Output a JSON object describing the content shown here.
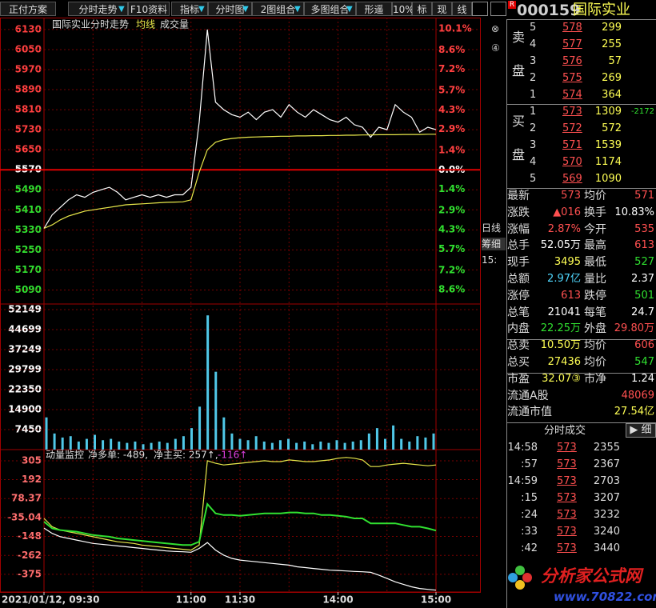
{
  "toolbar": {
    "items": [
      "正付方案",
      "分时走势",
      "F10资料",
      "指标",
      "分时图",
      "2图组合",
      "多图组合",
      "形遥",
      "10%",
      "标",
      "现",
      "线"
    ]
  },
  "chart_data": [
    {
      "type": "line",
      "title": "国际实业分时走势",
      "series": [
        {
          "color": "#ffffff",
          "values": [
            5336,
            5390,
            5420,
            5450,
            5470,
            5460,
            5480,
            5490,
            5500,
            5480,
            5450,
            5460,
            5470,
            5460,
            5470,
            5460,
            5470,
            5470,
            5500,
            5760,
            6130,
            5840,
            5810,
            5790,
            5780,
            5800,
            5770,
            5800,
            5810,
            5780,
            5830,
            5800,
            5780,
            5810,
            5790,
            5770,
            5760,
            5780,
            5750,
            5740,
            5700,
            5740,
            5730,
            5830,
            5800,
            5780,
            5720,
            5740,
            5730
          ]
        },
        {
          "name": "均线",
          "color": "#e8e84a",
          "values": [
            5336,
            5350,
            5370,
            5385,
            5395,
            5405,
            5410,
            5415,
            5420,
            5425,
            5430,
            5432,
            5434,
            5436,
            5438,
            5440,
            5441,
            5442,
            5450,
            5560,
            5650,
            5680,
            5690,
            5695,
            5698,
            5700,
            5701,
            5702,
            5703,
            5704,
            5704,
            5705,
            5705,
            5706,
            5706,
            5707,
            5707,
            5708,
            5708,
            5709,
            5709,
            5710,
            5710,
            5710,
            5711,
            5711,
            5711,
            5712,
            5712
          ]
        }
      ],
      "ylim": [
        5034,
        6168
      ],
      "yticks": [
        6130,
        6050,
        5970,
        5890,
        5810,
        5730,
        5650,
        5570,
        5490,
        5410,
        5330,
        5250,
        5170,
        5090
      ],
      "y2lim": [
        -9.62,
        10.74
      ],
      "y2ticks": [
        {
          "value": 10.1,
          "label": "10.1%"
        },
        {
          "value": 8.6,
          "label": "8.6%"
        },
        {
          "value": 7.2,
          "label": "7.2%"
        },
        {
          "value": 5.7,
          "label": "5.7%"
        },
        {
          "value": 4.3,
          "label": "4.3%"
        },
        {
          "value": 2.9,
          "label": "2.9%"
        },
        {
          "value": 1.4,
          "label": "1.4%"
        },
        {
          "value": 0,
          "label": "0.0%"
        },
        {
          "value": -1.4,
          "label": "1.4%"
        },
        {
          "value": -2.9,
          "label": "2.9%"
        },
        {
          "value": -4.3,
          "label": "4.3%"
        },
        {
          "value": -5.7,
          "label": "5.7%"
        },
        {
          "value": -7.2,
          "label": "7.2%"
        },
        {
          "value": -8.6,
          "label": "8.6%"
        }
      ],
      "grid": true
    },
    {
      "type": "bar",
      "series": [
        {
          "name": "成交量",
          "color": "#50c8e8",
          "values": [
            12000,
            6000,
            4500,
            5000,
            3000,
            4000,
            5500,
            3500,
            4000,
            3000,
            2500,
            3000,
            2000,
            2500,
            3000,
            2500,
            4000,
            5000,
            8000,
            16000,
            50000,
            29000,
            12000,
            6000,
            4000,
            3500,
            5000,
            3000,
            2500,
            3500,
            4000,
            2500,
            3000,
            2000,
            3000,
            2500,
            3500,
            2500,
            3000,
            3500,
            6000,
            8000,
            4000,
            9000,
            4000,
            3000,
            5000,
            4500,
            6000
          ]
        }
      ],
      "ylim": [
        0,
        52149
      ],
      "yticks": [
        52149,
        44699,
        37249,
        29799,
        22350,
        14900,
        7450
      ],
      "grid": true
    },
    {
      "type": "line",
      "title": "动量监控",
      "annotations": [
        "净多单: -489,",
        "净主买: 257↑,",
        "-116↑"
      ],
      "series": [
        {
          "color": "#e8e84a",
          "values": [
            -40,
            -90,
            -110,
            -120,
            -130,
            -140,
            -150,
            -160,
            -170,
            -180,
            -185,
            -190,
            -200,
            -205,
            -210,
            -215,
            -220,
            -225,
            -230,
            -200,
            305,
            290,
            280,
            285,
            290,
            295,
            300,
            305,
            300,
            300,
            310,
            305,
            300,
            300,
            305,
            310,
            320,
            325,
            320,
            310,
            270,
            270,
            280,
            285,
            290,
            285,
            280,
            275,
            280
          ]
        },
        {
          "color": "#30e030",
          "values": [
            -60,
            -100,
            -110,
            -115,
            -120,
            -130,
            -140,
            -145,
            -150,
            -160,
            -165,
            -170,
            -175,
            -180,
            -185,
            -190,
            -195,
            -200,
            -200,
            -180,
            46,
            -10,
            -20,
            -20,
            -25,
            -20,
            -15,
            -10,
            -10,
            -10,
            -5,
            -5,
            -10,
            -10,
            -20,
            -20,
            -25,
            -30,
            -40,
            -40,
            -70,
            -70,
            -70,
            -70,
            -80,
            -90,
            -90,
            -100,
            -113
          ]
        },
        {
          "color": "#ffffff",
          "values": [
            -98,
            -130,
            -150,
            -160,
            -170,
            -180,
            -190,
            -195,
            -200,
            -205,
            -210,
            -215,
            -220,
            -225,
            -230,
            -235,
            -238,
            -240,
            -243,
            -220,
            -185,
            -230,
            -260,
            -280,
            -290,
            -295,
            -300,
            -305,
            -310,
            -315,
            -320,
            -330,
            -335,
            -340,
            -345,
            -350,
            -352,
            -355,
            -358,
            -360,
            -363,
            -380,
            -400,
            -420,
            -435,
            -450,
            -460,
            -465,
            -470
          ]
        }
      ],
      "ylim": [
        -481,
        367
      ],
      "yticks": [
        305,
        192,
        78.37,
        -35.04,
        -148,
        -262,
        -375
      ],
      "grid": true,
      "xlim": [
        0,
        240
      ],
      "xticks": [
        {
          "value": 0,
          "label": "2021/01/12, 09:30"
        },
        {
          "value": 90,
          "label": "11:00"
        },
        {
          "value": 120,
          "label": "11:30"
        },
        {
          "value": 180,
          "label": "14:00"
        },
        {
          "value": 240,
          "label": "15:00"
        }
      ]
    }
  ],
  "side": {
    "tabs": [
      "日线",
      "筹细",
      "15:"
    ]
  },
  "quote": {
    "code": "000159",
    "name": "国际实业",
    "sell_label": [
      "卖",
      "盘"
    ],
    "buy_label": [
      "买",
      "盘"
    ],
    "sell": [
      [
        "5",
        "578",
        "299"
      ],
      [
        "4",
        "577",
        "255"
      ],
      [
        "3",
        "576",
        "57"
      ],
      [
        "2",
        "575",
        "269"
      ],
      [
        "1",
        "574",
        "364"
      ]
    ],
    "buy": [
      [
        "1",
        "573",
        "1309",
        "-2172"
      ],
      [
        "2",
        "572",
        "572"
      ],
      [
        "3",
        "571",
        "1539"
      ],
      [
        "4",
        "570",
        "1174"
      ],
      [
        "5",
        "569",
        "1090"
      ]
    ],
    "stats": [
      [
        {
          "label": "最新",
          "value": "573",
          "color": "#ff5050"
        },
        {
          "label": "均价",
          "value": "571",
          "color": "#ff5050"
        }
      ],
      [
        {
          "label": "涨跌",
          "value": "▲016",
          "color": "#ff5050"
        },
        {
          "label": "换手",
          "value": "10.83%",
          "color": "#ffffff"
        }
      ],
      [
        {
          "label": "涨幅",
          "value": "2.87%",
          "color": "#ff5050"
        },
        {
          "label": "今开",
          "value": "535",
          "color": "#ff5050"
        }
      ],
      [
        {
          "label": "总手",
          "value": "52.05万",
          "color": "#ffffff"
        },
        {
          "label": "最高",
          "value": "613",
          "color": "#ff5050"
        }
      ],
      [
        {
          "label": "现手",
          "value": "3495",
          "color": "#ffff54"
        },
        {
          "label": "最低",
          "value": "527",
          "color": "#30e030"
        }
      ],
      [
        {
          "label": "总额",
          "value": "2.97亿",
          "color": "#50d8ff"
        },
        {
          "label": "量比",
          "value": "2.37",
          "color": "#ffffff"
        }
      ],
      [
        {
          "label": "涨停",
          "value": "613",
          "color": "#ff5050"
        },
        {
          "label": "跌停",
          "value": "501",
          "color": "#30e030"
        }
      ],
      [
        {
          "label": "总笔",
          "value": "21041",
          "color": "#ffffff"
        },
        {
          "label": "每笔",
          "value": "24.7",
          "color": "#ffffff"
        }
      ],
      [
        {
          "label": "内盘",
          "value": "22.25万",
          "color": "#30e030"
        },
        {
          "label": "外盘",
          "value": "29.80万",
          "color": "#ff5050"
        }
      ],
      [
        {
          "label": "总卖",
          "value": "10.50万",
          "color": "#ffff54"
        },
        {
          "label": "均价",
          "value": "606",
          "color": "#ff5050"
        }
      ],
      [
        {
          "label": "总买",
          "value": "27436",
          "color": "#ffff54"
        },
        {
          "label": "均价",
          "value": "547",
          "color": "#30e030"
        }
      ],
      [
        {
          "label": "市盈",
          "value": "32.07③",
          "color": "#ffff54"
        },
        {
          "label": "市净",
          "value": "1.24",
          "color": "#ffffff"
        }
      ],
      [
        {
          "label": "流通A股",
          "value": "48069",
          "color": "#ff5050"
        }
      ],
      [
        {
          "label": "流通市值",
          "value": "27.54亿",
          "color": "#ffff54"
        }
      ]
    ],
    "trades_title": "分时成交",
    "trades_detail": "细",
    "trades": [
      [
        "14:58",
        "573",
        "2355"
      ],
      [
        ":57",
        "573",
        "2367"
      ],
      [
        "14:59",
        "573",
        "2703"
      ],
      [
        ":15",
        "573",
        "3207"
      ],
      [
        ":24",
        "573",
        "3232"
      ],
      [
        ":33",
        "573",
        "3240"
      ],
      [
        ":42",
        "573",
        "3440"
      ]
    ]
  },
  "watermark": {
    "name": "分析家公式网",
    "url": "www.70822.com"
  }
}
